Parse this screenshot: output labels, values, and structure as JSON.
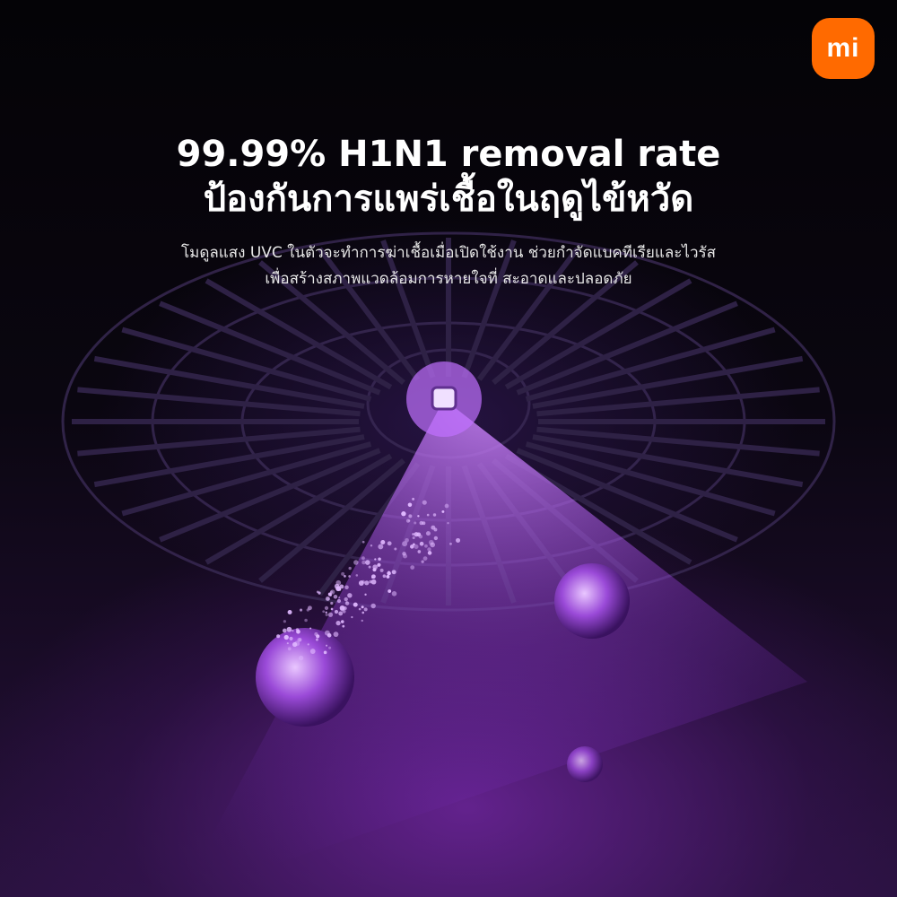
{
  "brand": {
    "logo_text": "mi",
    "logo_color": "#ff6a00"
  },
  "headline": {
    "line1": "99.99% H1N1 removal rate",
    "line2": "ป้องกันการแพร่เชื้อในฤดูไข้หวัด"
  },
  "description": {
    "line1": "โมดูลแสง UVC ในตัวจะทำการฆ่าเชื้อเมื่อเปิดใช้งาน ช่วยกำจัดแบคทีเรียและไวรัส",
    "line2": "เพื่อสร้างสภาพแวดล้อมการหายใจที่ สะอาดและปลอดภัย"
  },
  "colors": {
    "uv_light": "#b050ff",
    "background": "#000000"
  }
}
